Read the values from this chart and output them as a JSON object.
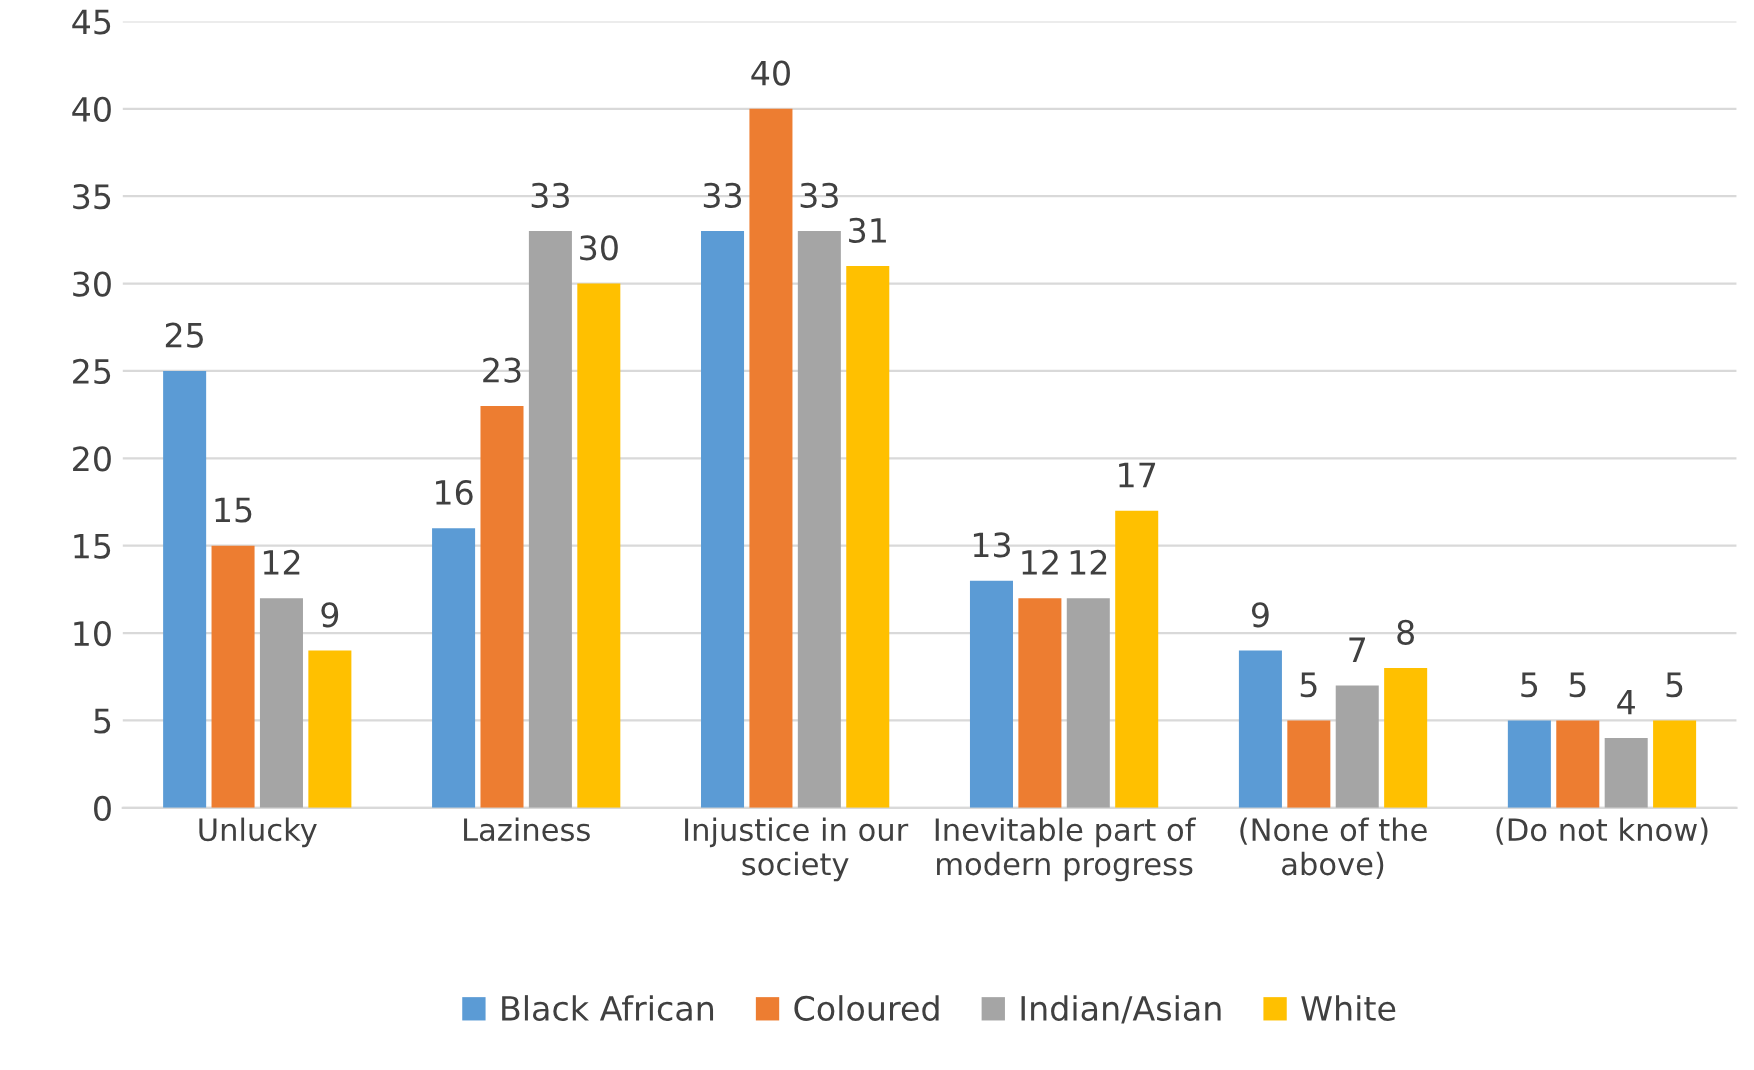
{
  "chart_data": {
    "type": "bar",
    "categories": [
      "Unlucky",
      "Laziness",
      "Injustice in our\nsociety",
      "Inevitable part of\nmodern progress",
      "(None of the\nabove)",
      "(Do not know)"
    ],
    "series": [
      {
        "name": "Black African",
        "color": "#5b9bd5",
        "values": [
          25,
          16,
          33,
          13,
          9,
          5
        ]
      },
      {
        "name": "Coloured",
        "color": "#ed7d31",
        "values": [
          15,
          23,
          40,
          12,
          5,
          5
        ]
      },
      {
        "name": "Indian/Asian",
        "color": "#a5a5a5",
        "values": [
          12,
          33,
          33,
          12,
          7,
          4
        ]
      },
      {
        "name": "White",
        "color": "#ffc000",
        "values": [
          9,
          30,
          31,
          17,
          8,
          5
        ]
      }
    ],
    "ylim": [
      0,
      45
    ],
    "yticks": [
      0,
      5,
      10,
      15,
      20,
      25,
      30,
      35,
      40,
      45
    ],
    "grid": "y",
    "legend": "bottom",
    "data_labels": true
  }
}
